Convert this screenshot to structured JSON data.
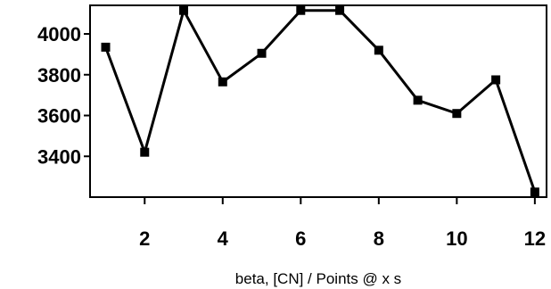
{
  "chart_data": {
    "type": "line",
    "title": "",
    "xlabel": "beta, [CN] / Points @ x s",
    "ylabel": "",
    "x": [
      1,
      2,
      3,
      4,
      5,
      6,
      7,
      8,
      9,
      10,
      11,
      12
    ],
    "series": [
      {
        "values": [
          3935,
          3420,
          4115,
          3765,
          3905,
          4115,
          4115,
          3920,
          3675,
          3610,
          3775,
          3225
        ]
      }
    ],
    "xlim": [
      0.6,
      12.3
    ],
    "ylim": [
      3200,
      4140
    ],
    "xticks": [
      2,
      4,
      6,
      8,
      10,
      12
    ],
    "xtick_labels": [
      "2",
      "4",
      "6",
      "8",
      "10",
      "12"
    ],
    "yticks": [
      3400,
      3600,
      3800,
      4000
    ],
    "ytick_labels": [
      "3400",
      "3600",
      "3800",
      "4000"
    ],
    "grid": false,
    "legend": "none",
    "line_color": "#000000",
    "marker": "square"
  }
}
